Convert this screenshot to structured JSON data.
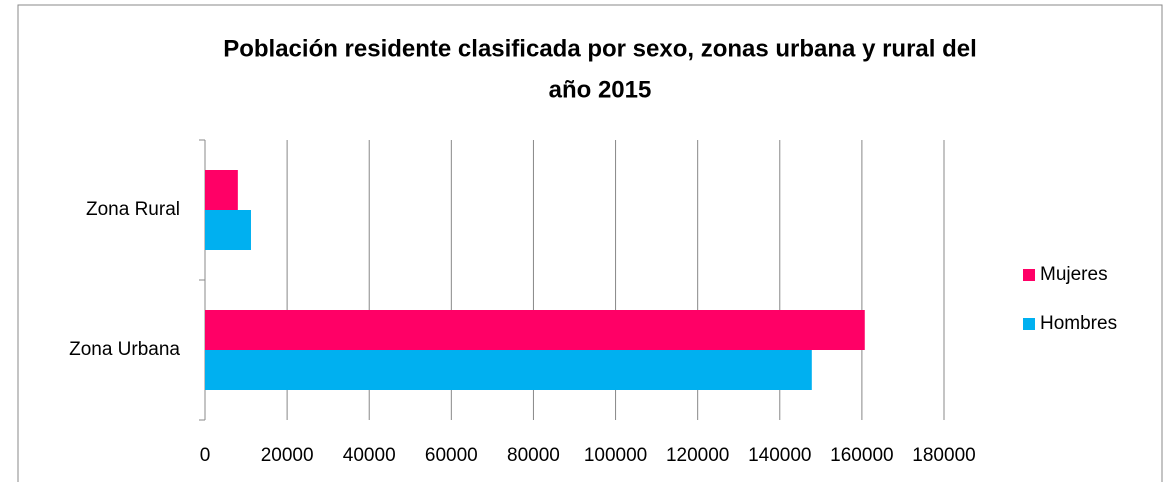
{
  "chart_data": {
    "type": "bar",
    "orientation": "horizontal",
    "title": [
      "Población residente clasificada por sexo, zonas urbana y rural del",
      "año 2015"
    ],
    "categories": [
      "Zona Urbana",
      "Zona Rural"
    ],
    "series": [
      {
        "name": "Hombres",
        "color": "#00b0f0",
        "values": [
          147800,
          11200
        ]
      },
      {
        "name": "Mujeres",
        "color": "#ff0066",
        "values": [
          160700,
          8000
        ]
      }
    ],
    "xlim": [
      0,
      180000
    ],
    "xticks": [
      0,
      20000,
      40000,
      60000,
      80000,
      100000,
      120000,
      140000,
      160000,
      180000
    ],
    "grid": true,
    "legend": "right"
  }
}
